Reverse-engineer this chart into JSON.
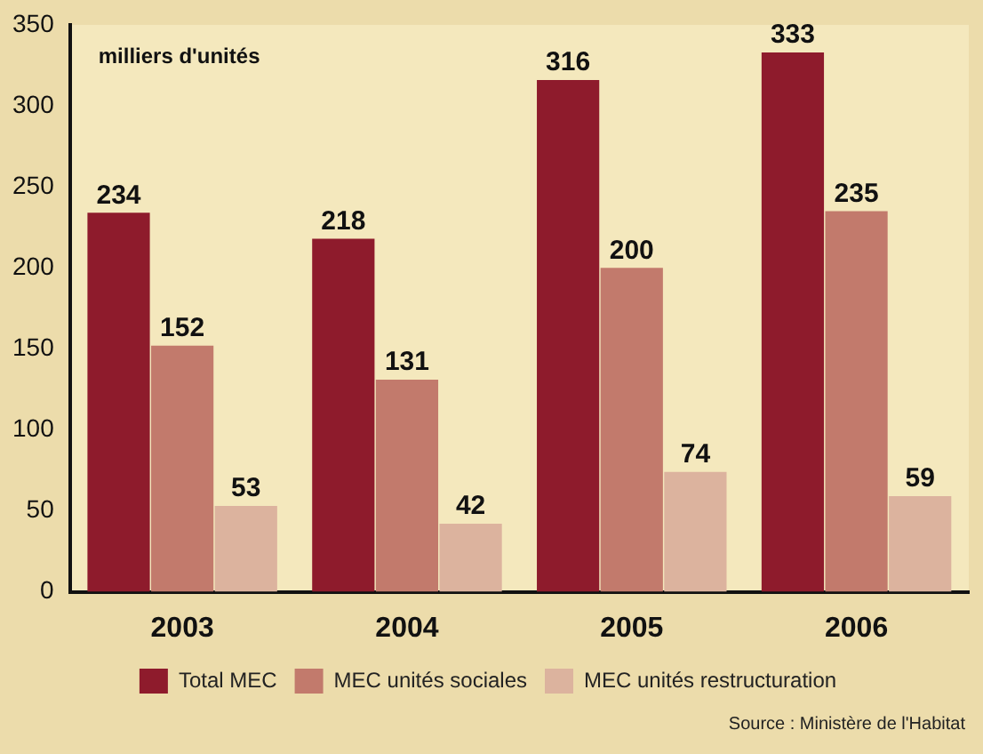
{
  "chart_data": {
    "type": "bar",
    "ylabel": "milliers d'unités",
    "categories": [
      "2003",
      "2004",
      "2005",
      "2006"
    ],
    "series": [
      {
        "name": "Total MEC",
        "color": "#8e1b2c",
        "values": [
          234,
          218,
          316,
          333
        ]
      },
      {
        "name": "MEC unités sociales",
        "color": "#c27a6c",
        "values": [
          152,
          131,
          200,
          235
        ]
      },
      {
        "name": "MEC unités restructuration",
        "color": "#dcb39e",
        "values": [
          53,
          42,
          74,
          59
        ]
      }
    ],
    "ylim": [
      0,
      350
    ],
    "yticks": [
      0,
      50,
      100,
      150,
      200,
      250,
      300,
      350
    ],
    "grid": false,
    "legend": "bottom",
    "data_labels": true,
    "annotations": [
      "Source : Ministère de l'Habitat"
    ]
  }
}
